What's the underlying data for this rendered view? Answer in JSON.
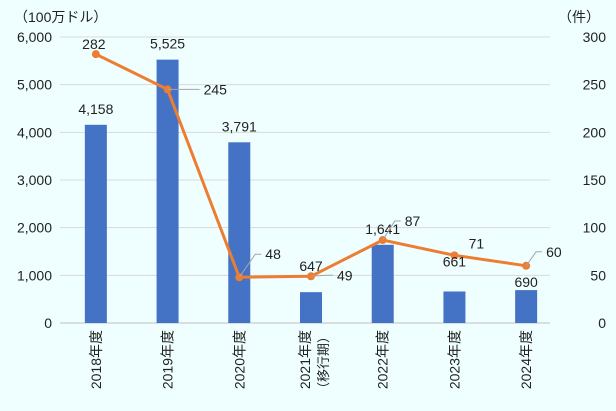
{
  "chart_data": {
    "type": "bar+line",
    "categories": [
      "2018年度",
      "2019年度",
      "2020年度",
      "2021年度",
      "2022年度",
      "2023年度",
      "2024年度"
    ],
    "category_sublabels": [
      "",
      "",
      "",
      "（移行期）",
      "",
      "",
      ""
    ],
    "left_axis": {
      "unit_label": "（100万ドル）",
      "ylim": [
        0,
        6000
      ],
      "ticks": [
        "0",
        "1,000",
        "2,000",
        "3,000",
        "4,000",
        "5,000",
        "6,000"
      ]
    },
    "right_axis": {
      "unit_label": "（件）",
      "ylim": [
        0,
        300
      ],
      "ticks": [
        "0",
        "50",
        "100",
        "150",
        "200",
        "250",
        "300"
      ]
    },
    "grid": true,
    "series": [
      {
        "type": "bar",
        "axis": "left",
        "color": "#4472c4",
        "values": [
          4158,
          5525,
          3791,
          647,
          1641,
          661,
          690
        ],
        "labels": [
          "4,158",
          "5,525",
          "3,791",
          "647",
          "1,641",
          "661",
          "690"
        ]
      },
      {
        "type": "line",
        "axis": "right",
        "color": "#ed7d31",
        "values": [
          282,
          245,
          48,
          49,
          87,
          71,
          60
        ],
        "labels": [
          "282",
          "245",
          "48",
          "49",
          "87",
          "71",
          "60"
        ]
      }
    ]
  }
}
